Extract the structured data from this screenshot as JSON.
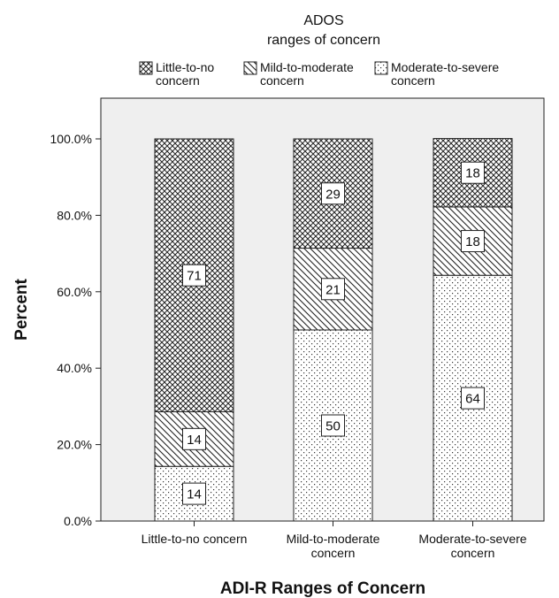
{
  "chart_data": {
    "type": "bar",
    "stacked": true,
    "title": "",
    "legend": {
      "title_lines": [
        "ADOS",
        "ranges of concern"
      ],
      "placement": "top",
      "entries": [
        {
          "lines": [
            "Little-to-no",
            "concern"
          ],
          "pattern": "crosshatch"
        },
        {
          "lines": [
            "Mild-to-moderate",
            "concern"
          ],
          "pattern": "diagonal"
        },
        {
          "lines": [
            "Moderate-to-severe",
            "concern"
          ],
          "pattern": "dots"
        }
      ]
    },
    "xlabel": "ADI-R Ranges of Concern",
    "ylabel": "Percent",
    "ylim": [
      0,
      100
    ],
    "yticks": [
      "0.0%",
      "20.0%",
      "40.0%",
      "60.0%",
      "80.0%",
      "100.0%"
    ],
    "ytick_values": [
      0,
      20,
      40,
      60,
      80,
      100
    ],
    "categories": [
      [
        "Little-to-no concern"
      ],
      [
        "Mild-to-moderate",
        "concern"
      ],
      [
        "Moderate-to-severe",
        "concern"
      ]
    ],
    "series": [
      {
        "name": "Moderate-to-severe concern",
        "pattern": "dots",
        "values": [
          14.3,
          50,
          64.3
        ],
        "labels": [
          "14",
          "50",
          "64"
        ]
      },
      {
        "name": "Mild-to-moderate concern",
        "pattern": "diagonal",
        "values": [
          14.3,
          21.4,
          17.9
        ],
        "labels": [
          "14",
          "21",
          "18"
        ]
      },
      {
        "name": "Little-to-no concern",
        "pattern": "crosshatch",
        "values": [
          71.4,
          28.6,
          17.9
        ],
        "labels": [
          "71",
          "29",
          "18"
        ]
      }
    ],
    "colors": {
      "plot_background": "#efefef",
      "bar_fill": "#ffffff",
      "ink": "#222222"
    }
  }
}
